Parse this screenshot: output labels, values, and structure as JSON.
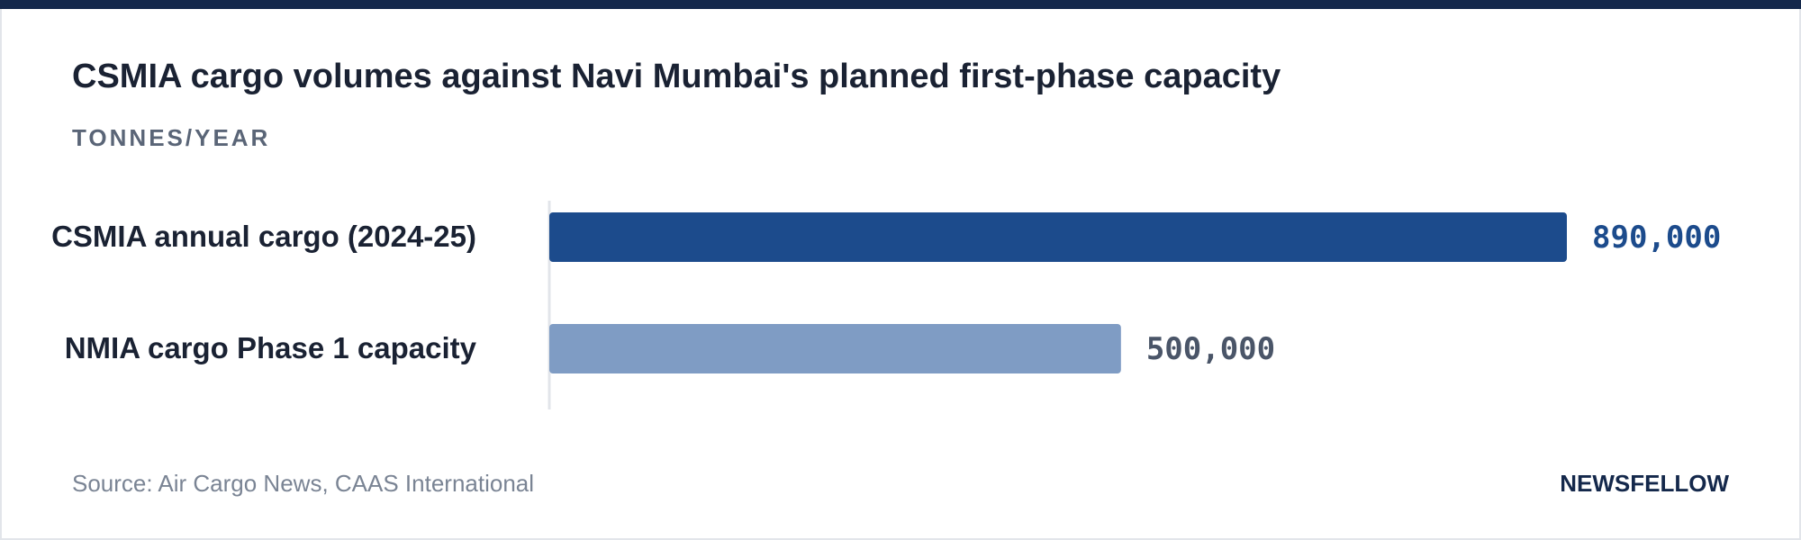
{
  "chart_data": {
    "type": "hbar",
    "title": "CSMIA cargo volumes against Navi Mumbai's planned first-phase capacity",
    "subtitle": "TONNES/YEAR",
    "categories": [
      "CSMIA annual cargo (2024-25)",
      "NMIA cargo Phase 1 capacity"
    ],
    "values": [
      890000,
      500000
    ],
    "value_labels": [
      "890,000",
      "500,000"
    ],
    "colors": [
      "#1c4b8c",
      "#7f9cc4"
    ],
    "label_colors": [
      "#1c4b8c",
      "#4a5568"
    ]
  },
  "footer": {
    "source": "Source: Air Cargo News, CAAS International",
    "brand": "NEWSFELLOW"
  }
}
